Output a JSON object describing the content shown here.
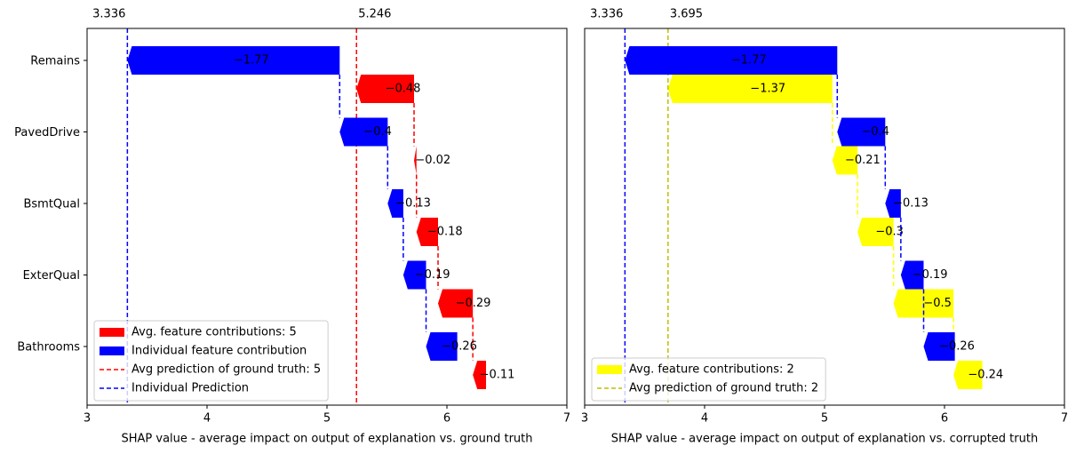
{
  "chart_data": [
    {
      "type": "waterfall",
      "categories": [
        "Remains",
        "PavedDrive",
        "BsmtQual",
        "ExterQual",
        "Bathrooms"
      ],
      "xlabel": "SHAP value - average impact on output of explanation vs. ground truth",
      "xlim": [
        3,
        7
      ],
      "xticks": [
        3,
        4,
        5,
        6,
        7
      ],
      "series": [
        {
          "name": "Avg. feature contributions: 5",
          "color": "red",
          "line_name": "Avg prediction of ground truth: 5",
          "line_color": "red",
          "prediction": 5.246,
          "values": [
            -0.48,
            -0.02,
            -0.18,
            -0.29,
            -0.11
          ],
          "value_labels": [
            "−0.48",
            "−0.02",
            "−0.18",
            "−0.29",
            "−0.11"
          ]
        },
        {
          "name": "Individual feature contribution",
          "color": "blue",
          "line_name": "Individual Prediction",
          "line_color": "blue",
          "prediction": 3.336,
          "values": [
            -1.77,
            -0.4,
            -0.13,
            -0.19,
            -0.26
          ],
          "value_labels": [
            "−1.77",
            "−0.4",
            "−0.13",
            "−0.19",
            "−0.26"
          ]
        }
      ]
    },
    {
      "type": "waterfall",
      "categories": [
        "Remains",
        "PavedDrive",
        "BsmtQual",
        "ExterQual",
        "Bathrooms"
      ],
      "xlabel": "SHAP value - average impact on output of explanation vs. corrupted truth",
      "xlim": [
        3,
        7
      ],
      "xticks": [
        3,
        4,
        5,
        6,
        7
      ],
      "series": [
        {
          "name": "Avg. feature contributions: 2",
          "color": "yellow",
          "line_name": "Avg prediction of ground truth: 2",
          "line_color": "#bfbf00",
          "prediction": 3.695,
          "values": [
            -1.37,
            -0.21,
            -0.3,
            -0.5,
            -0.24
          ],
          "value_labels": [
            "−1.37",
            "−0.21",
            "−0.3",
            "−0.5",
            "−0.24"
          ]
        },
        {
          "color": "blue",
          "line_color": "blue",
          "prediction": 3.336,
          "values": [
            -1.77,
            -0.4,
            -0.13,
            -0.19,
            -0.26
          ],
          "value_labels": [
            "−1.77",
            "−0.4",
            "−0.13",
            "−0.19",
            "−0.26"
          ]
        }
      ]
    }
  ]
}
